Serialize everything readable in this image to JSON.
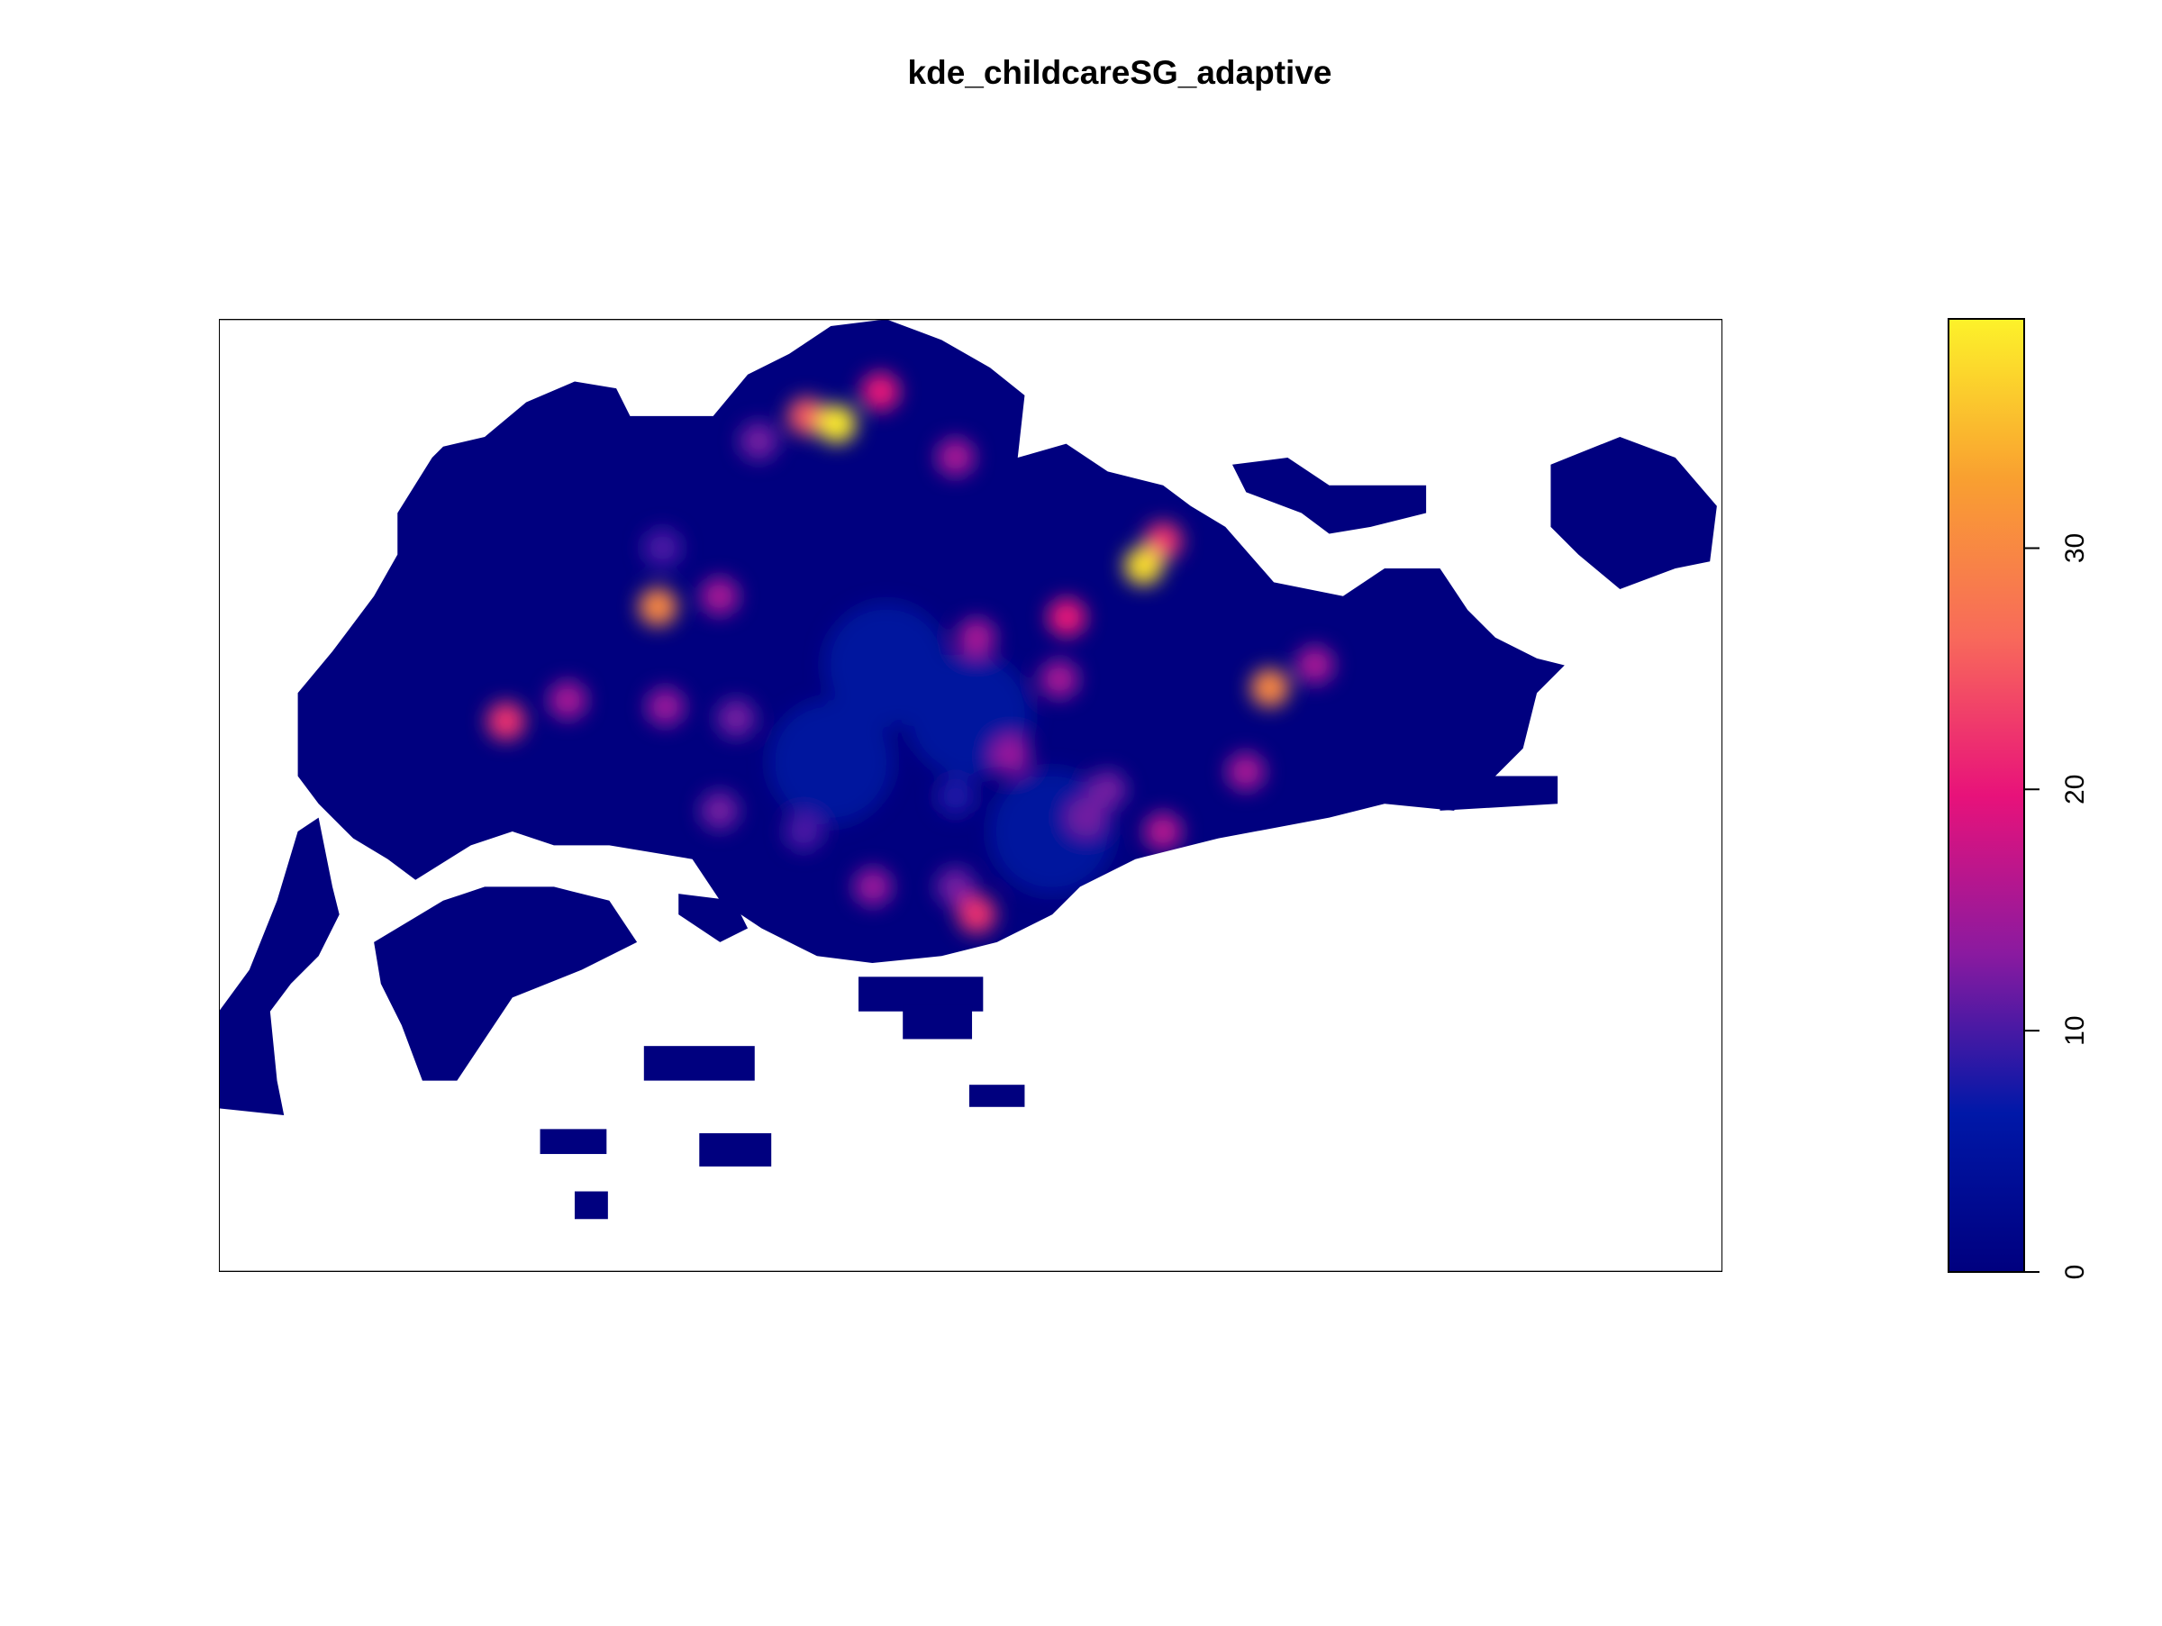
{
  "chart_data": {
    "type": "raster",
    "title": "kde_childcareSG_adaptive",
    "xlim": [
      0,
      100
    ],
    "ylim": [
      0,
      100
    ],
    "zlim": [
      0,
      39.5
    ],
    "zticks": [
      0,
      10,
      20,
      30
    ],
    "land_color": "#00007f",
    "colors": [
      "#00007f",
      "#0018a8",
      "#8a1aa0",
      "#e8127a",
      "#f86a5a",
      "#f9a030",
      "#fdf22a"
    ],
    "hotspots": [
      {
        "x": 44.4,
        "y": 63.7,
        "value": 5
      },
      {
        "x": 40.7,
        "y": 53.5,
        "value": 5
      },
      {
        "x": 55.4,
        "y": 46.2,
        "value": 5
      },
      {
        "x": 49.9,
        "y": 58.4,
        "value": 5
      },
      {
        "x": 49.0,
        "y": 49.9,
        "value": 8
      },
      {
        "x": 35.9,
        "y": 87.2,
        "value": 12
      },
      {
        "x": 49.0,
        "y": 85.5,
        "value": 15
      },
      {
        "x": 44.0,
        "y": 92.4,
        "value": 20
      },
      {
        "x": 39.1,
        "y": 89.8,
        "value": 25
      },
      {
        "x": 41.1,
        "y": 89.0,
        "value": 39
      },
      {
        "x": 50.4,
        "y": 66.6,
        "value": 15
      },
      {
        "x": 56.4,
        "y": 68.7,
        "value": 20
      },
      {
        "x": 62.8,
        "y": 76.7,
        "value": 22
      },
      {
        "x": 61.5,
        "y": 74.1,
        "value": 38
      },
      {
        "x": 72.9,
        "y": 63.7,
        "value": 15
      },
      {
        "x": 68.3,
        "y": 52.5,
        "value": 15
      },
      {
        "x": 69.9,
        "y": 61.3,
        "value": 30
      },
      {
        "x": 29.5,
        "y": 76.0,
        "value": 10
      },
      {
        "x": 33.3,
        "y": 70.9,
        "value": 15
      },
      {
        "x": 29.2,
        "y": 69.8,
        "value": 30
      },
      {
        "x": 23.2,
        "y": 60.0,
        "value": 15
      },
      {
        "x": 19.1,
        "y": 57.8,
        "value": 22
      },
      {
        "x": 29.7,
        "y": 59.3,
        "value": 14
      },
      {
        "x": 34.4,
        "y": 58.1,
        "value": 12
      },
      {
        "x": 52.7,
        "y": 54.2,
        "value": 14
      },
      {
        "x": 55.9,
        "y": 62.2,
        "value": 15
      },
      {
        "x": 33.3,
        "y": 48.4,
        "value": 12
      },
      {
        "x": 38.9,
        "y": 46.2,
        "value": 10
      },
      {
        "x": 43.5,
        "y": 40.4,
        "value": 14
      },
      {
        "x": 49.0,
        "y": 40.4,
        "value": 12
      },
      {
        "x": 50.4,
        "y": 37.5,
        "value": 22
      },
      {
        "x": 57.7,
        "y": 47.7,
        "value": 12
      },
      {
        "x": 59.1,
        "y": 50.6,
        "value": 12
      },
      {
        "x": 62.8,
        "y": 46.2,
        "value": 16
      }
    ]
  }
}
